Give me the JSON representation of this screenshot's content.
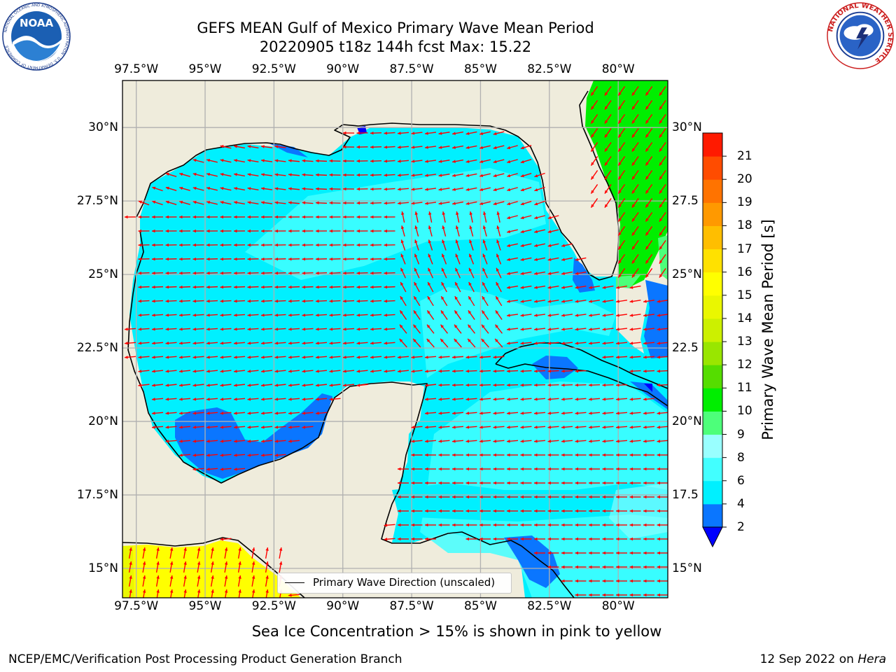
{
  "title": {
    "line1": "GEFS MEAN Gulf of Mexico Primary Wave Mean Period",
    "line2": "20220905 t18z 144h fcst   Max: 15.22"
  },
  "logos": {
    "noaa_text": "NOAA",
    "noaa_ring": "NATIONAL OCEANIC AND ATMOSPHERIC ADMINISTRATION · U.S. DEPARTMENT OF COMMERCE",
    "nws_ring": "NATIONAL WEATHER SERVICE"
  },
  "map": {
    "lon_ticks": [
      "97.5°W",
      "95°W",
      "92.5°W",
      "90°W",
      "87.5°W",
      "85°W",
      "82.5°W",
      "80°W"
    ],
    "lon_values": [
      -97.5,
      -95,
      -92.5,
      -90,
      -87.5,
      -85,
      -82.5,
      -80
    ],
    "lat_ticks_left": [
      "30°N",
      "27.5°N",
      "25°N",
      "22.5°N",
      "20°N",
      "17.5°N",
      "15°N"
    ],
    "lat_ticks_right": [
      "30°N",
      "27.5",
      "25°N",
      "22.5",
      "20°N",
      "17.5",
      "15°N"
    ],
    "lat_values": [
      30,
      27.5,
      25,
      22.5,
      20,
      17.5,
      15
    ],
    "extent": {
      "lon_min": -98,
      "lon_max": -78.2,
      "lat_min": 14,
      "lat_max": 31.6
    },
    "land_color": "#efecdc",
    "grid_color": "#b0b0b0",
    "arrow_color": "#ff0000",
    "coastline_color": "#000000"
  },
  "legend": {
    "label": "Primary Wave Direction (unscaled)"
  },
  "colorbar": {
    "label": "Primary Wave Mean Period [s]",
    "tick_labels": [
      "2",
      "4",
      "6",
      "8",
      "9",
      "10",
      "11",
      "12",
      "13",
      "14",
      "15",
      "16",
      "17",
      "18",
      "19",
      "20",
      "21"
    ],
    "levels": [
      2,
      4,
      6,
      8,
      9,
      10,
      11,
      12,
      13,
      14,
      15,
      16,
      17,
      18,
      19,
      20,
      21
    ],
    "colors": [
      "#0a76ff",
      "#00f0ff",
      "#42ffff",
      "#99ffff",
      "#4dff7a",
      "#00ee00",
      "#55dd00",
      "#99e600",
      "#ccf000",
      "#eaf700",
      "#ffff00",
      "#ffe100",
      "#ffbe00",
      "#ff9900",
      "#ff7300",
      "#ff4c00",
      "#ff1a00"
    ],
    "under_color": "#0000ff"
  },
  "note": "Sea Ice Concentration > 15% is shown in pink to yellow",
  "footer": {
    "left": "NCEP/EMC/Verification Post Processing Product Generation Branch",
    "right_date": "12 Sep 2022 on",
    "right_host": "Hera"
  }
}
